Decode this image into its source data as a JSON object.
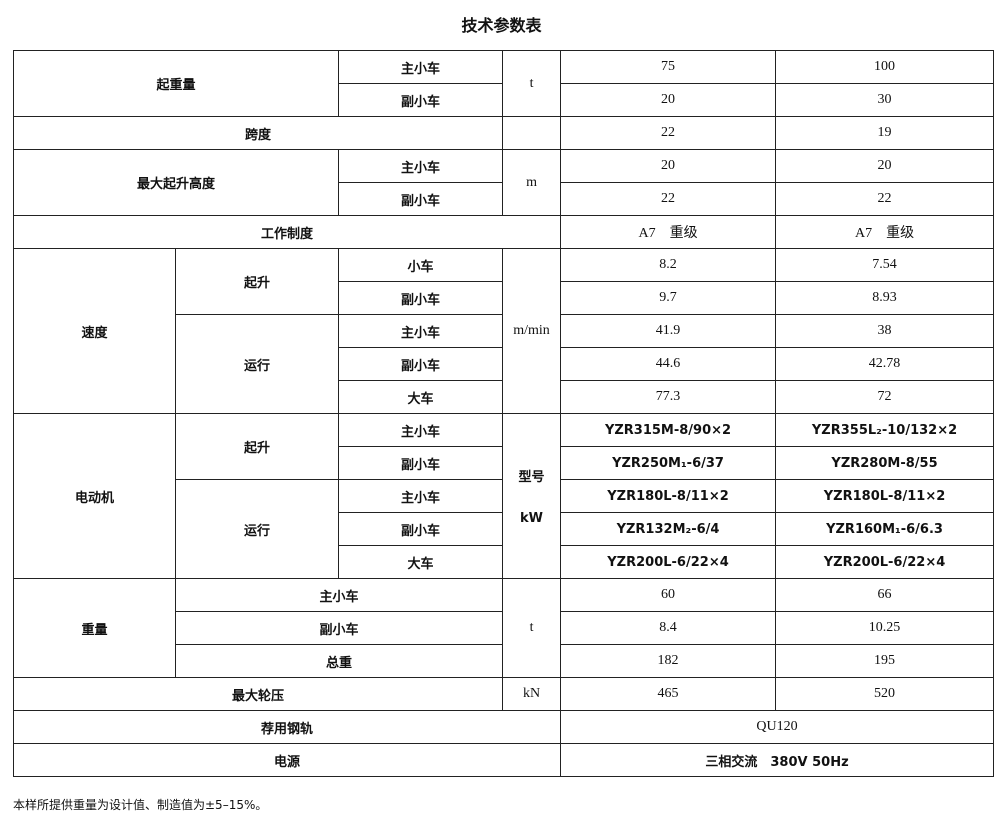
{
  "title": "技术参数表",
  "rows": {
    "lift_capacity": {
      "label": "起重量",
      "main": "主小车",
      "aux": "副小车",
      "unit": "t",
      "main_v1": "75",
      "main_v2": "100",
      "aux_v1": "20",
      "aux_v2": "30"
    },
    "span": {
      "label": "跨度",
      "v1": "22",
      "v2": "19"
    },
    "max_lift_height": {
      "label": "最大起升高度",
      "main": "主小车",
      "aux": "副小车",
      "unit": "m",
      "main_v1": "20",
      "main_v2": "20",
      "aux_v1": "22",
      "aux_v2": "22"
    },
    "duty": {
      "label": "工作制度",
      "v1": "A7　重级",
      "v2": "A7　重级"
    },
    "speed": {
      "label": "速度",
      "unit": "m/min",
      "hoist": {
        "label": "起升",
        "r1": {
          "label": "小车",
          "v1": "8.2",
          "v2": "7.54"
        },
        "r2": {
          "label": "副小车",
          "v1": "9.7",
          "v2": "8.93"
        }
      },
      "travel": {
        "label": "运行",
        "r1": {
          "label": "主小车",
          "v1": "41.9",
          "v2": "38"
        },
        "r2": {
          "label": "副小车",
          "v1": "44.6",
          "v2": "42.78"
        },
        "r3": {
          "label": "大车",
          "v1": "77.3",
          "v2": "72"
        }
      }
    },
    "motor": {
      "label": "电动机",
      "unit_top": "型号",
      "unit_bottom": "kW",
      "hoist": {
        "label": "起升",
        "r1": {
          "label": "主小车",
          "v1": "YZR315M-8/90×2",
          "v2": "YZR355L₂-10/132×2"
        },
        "r2": {
          "label": "副小车",
          "v1": "YZR250M₁-6/37",
          "v2": "YZR280M-8/55"
        }
      },
      "travel": {
        "label": "运行",
        "r1": {
          "label": "主小车",
          "v1": "YZR180L-8/11×2",
          "v2": "YZR180L-8/11×2"
        },
        "r2": {
          "label": "副小车",
          "v1": "YZR132M₂-6/4",
          "v2": "YZR160M₁-6/6.3"
        },
        "r3": {
          "label": "大车",
          "v1": "YZR200L-6/22×4",
          "v2": "YZR200L-6/22×4"
        }
      }
    },
    "weight": {
      "label": "重量",
      "unit": "t",
      "r1": {
        "label": "主小车",
        "v1": "60",
        "v2": "66"
      },
      "r2": {
        "label": "副小车",
        "v1": "8.4",
        "v2": "10.25"
      },
      "r3": {
        "label": "总重",
        "v1": "182",
        "v2": "195"
      }
    },
    "max_wheel_load": {
      "label": "最大轮压",
      "unit": "kN",
      "v1": "465",
      "v2": "520"
    },
    "rail": {
      "label": "荐用钢轨",
      "value": "QU120"
    },
    "power": {
      "label": "电源",
      "value": "三相交流　380V 50Hz"
    }
  },
  "note": "本样所提供重量为设计值、制造值为±5–15%。"
}
